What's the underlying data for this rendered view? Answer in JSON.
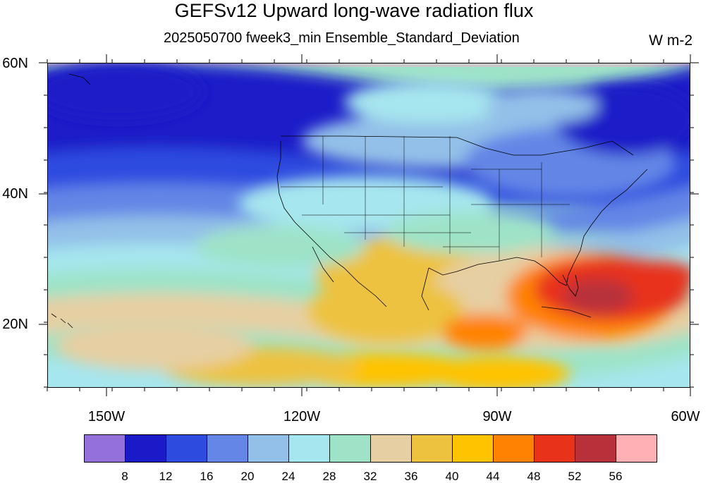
{
  "title": "GEFSv12 Upward long-wave radiation flux",
  "subtitle": "2025050700 fweek3_min Ensemble_Standard_Deviation",
  "units": "W m-2",
  "map": {
    "lat_labels": [
      "60N",
      "40N",
      "20N"
    ],
    "lon_labels": [
      "150W",
      "120W",
      "90W",
      "60W"
    ],
    "lat_range": [
      10,
      60
    ],
    "lon_range": [
      -160,
      -60
    ]
  },
  "colorbar": {
    "levels": [
      "8",
      "12",
      "16",
      "20",
      "24",
      "28",
      "32",
      "36",
      "40",
      "44",
      "48",
      "52",
      "56"
    ],
    "colors": [
      "#9370db",
      "#1a1ac8",
      "#2e4be0",
      "#6486e6",
      "#93c0e8",
      "#a6e6ee",
      "#9ee3c8",
      "#e6cfa3",
      "#edc23f",
      "#ffc300",
      "#ff8200",
      "#e8331a",
      "#b8303a",
      "#ffb0b4"
    ]
  }
}
